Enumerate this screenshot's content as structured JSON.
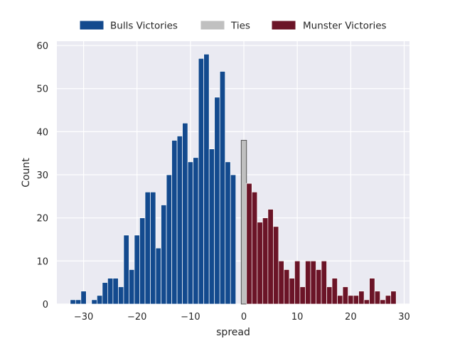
{
  "chart_data": {
    "type": "bar",
    "title": "",
    "xlabel": "spread",
    "ylabel": "Count",
    "xlim": [
      -35,
      31
    ],
    "ylim": [
      0,
      61
    ],
    "xticks": [
      -30,
      -20,
      -10,
      0,
      10,
      20,
      30
    ],
    "yticks": [
      0,
      10,
      20,
      30,
      40,
      50,
      60
    ],
    "grid": true,
    "legend_placement": "top-center",
    "bar_width": 1,
    "series": [
      {
        "name": "Bulls Victories",
        "color": "#134a8e",
        "x": [
          -32,
          -31,
          -30,
          -28,
          -27,
          -26,
          -25,
          -24,
          -23,
          -22,
          -21,
          -20,
          -19,
          -18,
          -17,
          -16,
          -15,
          -14,
          -13,
          -12,
          -11,
          -10,
          -9,
          -8,
          -7,
          -6,
          -5,
          -4,
          -3,
          -2,
          -1
        ],
        "values": [
          1,
          1,
          3,
          1,
          2,
          5,
          6,
          6,
          4,
          16,
          8,
          16,
          20,
          26,
          26,
          13,
          23,
          30,
          38,
          39,
          42,
          33,
          34,
          57,
          58,
          36,
          48,
          54,
          33,
          30,
          0
        ]
      },
      {
        "name": "Ties",
        "color": "#c0c0c0",
        "x": [
          0
        ],
        "values": [
          38
        ]
      },
      {
        "name": "Munster Victories",
        "color": "#6b1427",
        "x": [
          1,
          2,
          3,
          4,
          5,
          6,
          7,
          8,
          9,
          10,
          11,
          12,
          13,
          14,
          15,
          16,
          17,
          18,
          19,
          20,
          21,
          22,
          23,
          24,
          25,
          26,
          27,
          28
        ],
        "values": [
          28,
          26,
          19,
          20,
          22,
          18,
          10,
          8,
          6,
          10,
          4,
          10,
          10,
          8,
          10,
          4,
          6,
          2,
          4,
          2,
          2,
          3,
          1,
          6,
          3,
          1,
          2,
          3
        ]
      }
    ]
  }
}
